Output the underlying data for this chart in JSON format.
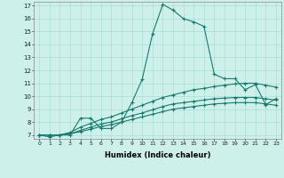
{
  "xlabel": "Humidex (Indice chaleur)",
  "xlim": [
    -0.5,
    23.5
  ],
  "ylim": [
    6.7,
    17.3
  ],
  "yticks": [
    7,
    8,
    9,
    10,
    11,
    12,
    13,
    14,
    15,
    16,
    17
  ],
  "xticks": [
    0,
    1,
    2,
    3,
    4,
    5,
    6,
    7,
    8,
    9,
    10,
    11,
    12,
    13,
    14,
    15,
    16,
    17,
    18,
    19,
    20,
    21,
    22,
    23
  ],
  "background_color": "#cdf0ea",
  "grid_color": "#aaddd7",
  "line_color": "#1a7a6e",
  "line_width": 0.8,
  "marker": "+",
  "marker_size": 3,
  "series": [
    [
      7.0,
      6.85,
      7.0,
      7.0,
      8.3,
      8.3,
      7.5,
      7.5,
      8.0,
      9.5,
      11.3,
      14.8,
      17.1,
      16.65,
      16.0,
      15.75,
      15.4,
      11.7,
      11.35,
      11.35,
      10.5,
      10.9,
      9.35,
      9.8
    ],
    [
      7.0,
      7.0,
      7.0,
      7.2,
      7.6,
      7.9,
      8.2,
      8.4,
      8.7,
      9.0,
      9.3,
      9.6,
      9.9,
      10.1,
      10.3,
      10.5,
      10.6,
      10.75,
      10.85,
      10.95,
      11.0,
      11.0,
      10.85,
      10.7
    ],
    [
      7.0,
      7.0,
      7.0,
      7.1,
      7.35,
      7.6,
      7.85,
      8.0,
      8.25,
      8.5,
      8.7,
      8.95,
      9.2,
      9.4,
      9.5,
      9.6,
      9.7,
      9.8,
      9.85,
      9.9,
      9.9,
      9.9,
      9.8,
      9.7
    ],
    [
      7.0,
      7.0,
      7.0,
      7.1,
      7.25,
      7.45,
      7.65,
      7.8,
      8.0,
      8.2,
      8.4,
      8.6,
      8.8,
      9.0,
      9.1,
      9.2,
      9.3,
      9.4,
      9.45,
      9.5,
      9.5,
      9.5,
      9.4,
      9.3
    ]
  ]
}
